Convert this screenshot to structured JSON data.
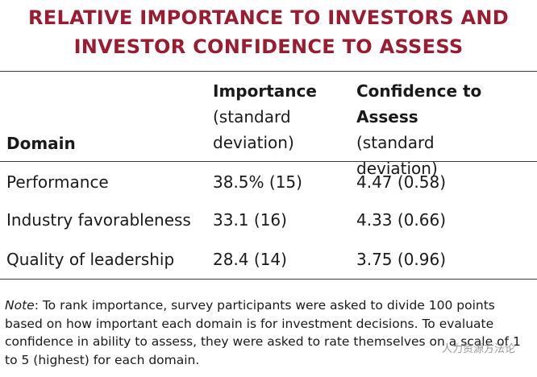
{
  "title": {
    "line1": "RELATIVE IMPORTANCE TO INVESTORS AND",
    "line2": "INVESTOR CONFIDENCE TO ASSESS"
  },
  "table": {
    "headers": {
      "domain": "Domain",
      "importance": "Importance",
      "importance_sub": "(standard deviation)",
      "confidence": "Confidence to Assess",
      "confidence_sub": "(standard deviation)"
    },
    "rows": [
      {
        "domain": "Performance",
        "importance": "38.5% (15)",
        "confidence": "4.47 (0.58)"
      },
      {
        "domain": "Industry favorableness",
        "importance": "33.1 (16)",
        "confidence": "4.33 (0.66)"
      },
      {
        "domain": "Quality of leadership",
        "importance": "28.4 (14)",
        "confidence": "3.75 (0.96)"
      }
    ]
  },
  "note": {
    "label": "Note",
    "text": ": To rank importance, survey participants were asked to divide 100 points based on how important each domain is for investment decisions. To evaluate confidence in ability to assess, they were asked to rate themselves on a scale of 1 to 5 (highest) for each domain."
  },
  "watermark": "人力资源方法论"
}
